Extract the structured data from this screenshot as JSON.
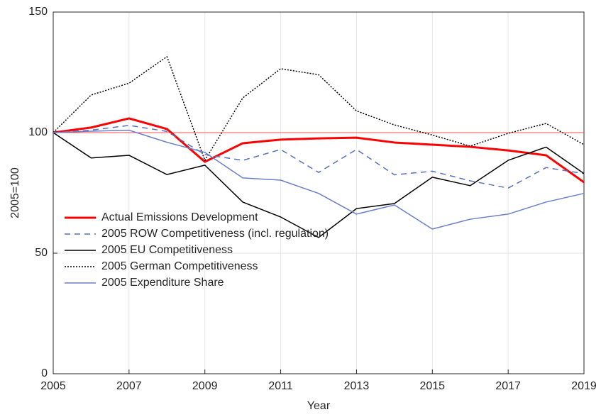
{
  "chart_data": {
    "type": "line",
    "xlabel": "Year",
    "ylabel": "2005=100",
    "x": [
      2005,
      2006,
      2007,
      2008,
      2009,
      2010,
      2011,
      2012,
      2013,
      2014,
      2015,
      2016,
      2017,
      2018,
      2019
    ],
    "xlim": [
      2005,
      2019
    ],
    "xticks": [
      2005,
      2007,
      2009,
      2011,
      2013,
      2015,
      2017,
      2019
    ],
    "ylim": [
      0,
      150
    ],
    "yticks": [
      0,
      50,
      100,
      150
    ],
    "grid": true,
    "legend": "lower-left",
    "hline": {
      "value": 100,
      "color": "#ff4d4d"
    },
    "series": [
      {
        "name": "Actual Emissions Development",
        "color": "#ff0000",
        "style": "solid",
        "width": 3,
        "values": [
          100,
          102.1,
          105.9,
          101.5,
          87.9,
          95.6,
          97.1,
          97.6,
          97.9,
          95.9,
          95,
          94.1,
          92.6,
          90.6,
          79.4
        ]
      },
      {
        "name": "2005 ROW Competitiveness (incl. regulation)",
        "color": "#5470c0",
        "style": "dashed",
        "width": 1.5,
        "values": [
          100,
          101,
          103,
          100.5,
          90.9,
          88.5,
          93,
          83.5,
          93,
          82.5,
          84,
          80,
          77,
          85.5,
          83
        ]
      },
      {
        "name": "2005 EU Competitiveness",
        "color": "#000000",
        "style": "solid",
        "width": 1.5,
        "values": [
          100,
          89.5,
          90.6,
          82.6,
          86.5,
          71.2,
          65,
          56.5,
          68.5,
          70.6,
          81.5,
          78,
          88.5,
          94,
          83
        ]
      },
      {
        "name": "2005 German Competitiveness",
        "color": "#000000",
        "style": "dotted",
        "width": 1.5,
        "values": [
          100,
          115.6,
          120.5,
          131.5,
          88.5,
          114.4,
          126.5,
          124,
          109,
          103.2,
          99,
          94.4,
          99.7,
          103.8,
          95
        ]
      },
      {
        "name": "2005 Expenditure Share",
        "color": "#6a7fcc",
        "style": "solid",
        "width": 1.5,
        "values": [
          100,
          100.6,
          101,
          96,
          91.8,
          81.2,
          80.3,
          74.8,
          66.2,
          70,
          60,
          64.1,
          66.2,
          71.2,
          74.8
        ]
      }
    ]
  }
}
